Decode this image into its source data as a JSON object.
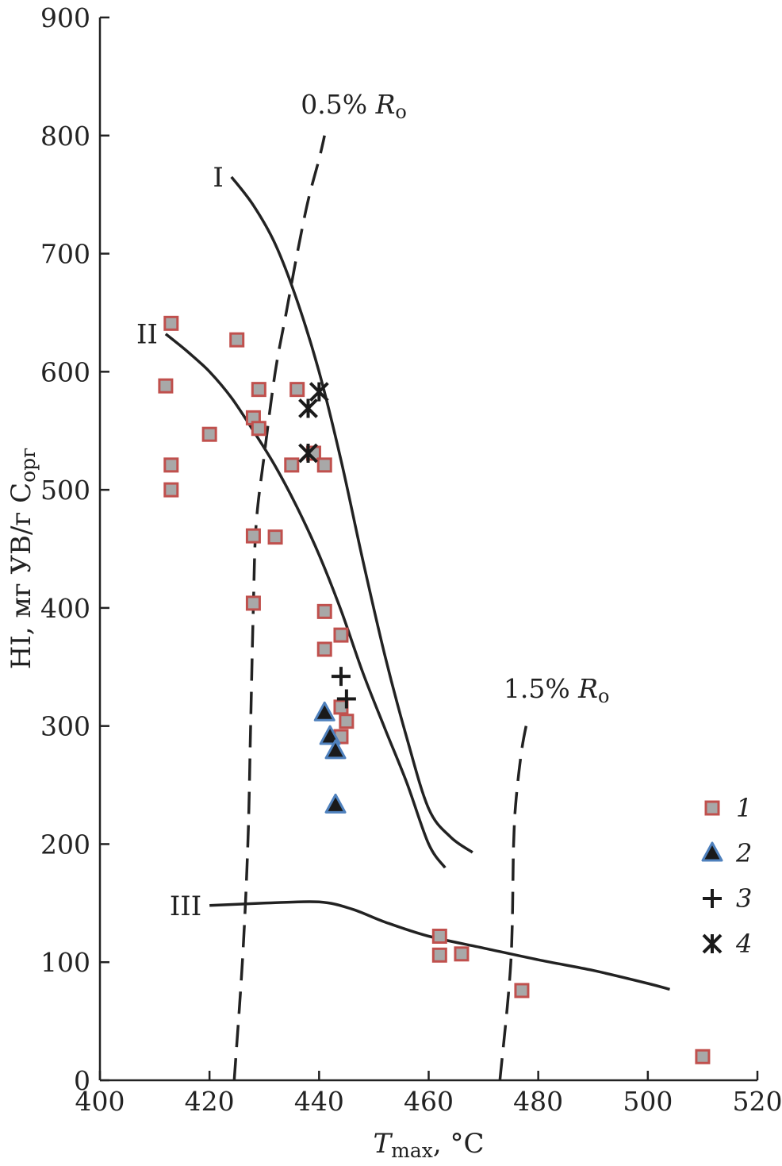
{
  "chart_data": {
    "type": "scatter",
    "xlabel": {
      "main": "T",
      "sub": "max",
      "rest": ", °C"
    },
    "ylabel": {
      "main": "HI, мг УВ/г С",
      "sub": "орг"
    },
    "xlim": [
      400,
      520
    ],
    "ylim": [
      0,
      900
    ],
    "xticks": [
      "400",
      "420",
      "440",
      "460",
      "480",
      "500",
      "520"
    ],
    "yticks": [
      "0",
      "100",
      "200",
      "300",
      "400",
      "500",
      "600",
      "700",
      "800",
      "900"
    ],
    "xtick_values": [
      400,
      420,
      440,
      460,
      480,
      500,
      520
    ],
    "ytick_values": [
      0,
      100,
      200,
      300,
      400,
      500,
      600,
      700,
      800,
      900
    ],
    "grid": false,
    "legend_position": "right",
    "colors": {
      "square_fill": "#a8a8a8",
      "square_edge": "#c0504d",
      "triangle_fill": "#1a1a1a",
      "triangle_edge": "#4f81bd",
      "marker_dark": "#1a1a1a"
    },
    "series": [
      {
        "name": "1",
        "marker": "square",
        "points": [
          [
            413,
            641
          ],
          [
            425,
            627
          ],
          [
            412,
            588
          ],
          [
            413,
            521
          ],
          [
            413,
            500
          ],
          [
            420,
            547
          ],
          [
            428,
            561
          ],
          [
            429,
            585
          ],
          [
            429,
            552
          ],
          [
            436,
            585
          ],
          [
            435,
            521
          ],
          [
            439,
            531
          ],
          [
            441,
            521
          ],
          [
            428,
            461
          ],
          [
            432,
            460
          ],
          [
            428,
            404
          ],
          [
            441,
            397
          ],
          [
            444,
            377
          ],
          [
            441,
            365
          ],
          [
            444,
            316
          ],
          [
            445,
            304
          ],
          [
            444,
            291
          ],
          [
            462,
            122
          ],
          [
            462,
            106
          ],
          [
            466,
            107
          ],
          [
            477,
            76
          ],
          [
            510,
            20
          ]
        ]
      },
      {
        "name": "2",
        "marker": "triangle",
        "points": [
          [
            441,
            311
          ],
          [
            442,
            291
          ],
          [
            443,
            279
          ],
          [
            443,
            233
          ]
        ]
      },
      {
        "name": "3",
        "marker": "plus",
        "points": [
          [
            444,
            342
          ],
          [
            445,
            323
          ]
        ]
      },
      {
        "name": "4",
        "marker": "x",
        "points": [
          [
            440,
            583
          ],
          [
            438,
            569
          ],
          [
            438,
            531
          ]
        ]
      }
    ],
    "type_curves": [
      {
        "label": "I",
        "points": [
          [
            424,
            765
          ],
          [
            428,
            741
          ],
          [
            432,
            708
          ],
          [
            436,
            660
          ],
          [
            440,
            600
          ],
          [
            444,
            525
          ],
          [
            448,
            440
          ],
          [
            452,
            360
          ],
          [
            456,
            290
          ],
          [
            460,
            230
          ],
          [
            464,
            206
          ],
          [
            468,
            193
          ]
        ]
      },
      {
        "label": "II",
        "points": [
          [
            412,
            632
          ],
          [
            416,
            617
          ],
          [
            420,
            600
          ],
          [
            424,
            578
          ],
          [
            428,
            550
          ],
          [
            432,
            520
          ],
          [
            436,
            485
          ],
          [
            440,
            445
          ],
          [
            444,
            398
          ],
          [
            448,
            345
          ],
          [
            452,
            298
          ],
          [
            456,
            252
          ],
          [
            460,
            200
          ],
          [
            463,
            180
          ]
        ]
      },
      {
        "label": "III",
        "points": [
          [
            420,
            148
          ],
          [
            430,
            150
          ],
          [
            440,
            151
          ],
          [
            446,
            145
          ],
          [
            452,
            134
          ],
          [
            460,
            122
          ],
          [
            470,
            112
          ],
          [
            480,
            102
          ],
          [
            490,
            93
          ],
          [
            500,
            82
          ],
          [
            504,
            77
          ]
        ]
      }
    ],
    "iso_curves": [
      {
        "label_pct": "0.5%",
        "label_var": "R",
        "label_sub": "o",
        "points": [
          [
            424.5,
            0
          ],
          [
            426,
            100
          ],
          [
            427,
            200
          ],
          [
            427.5,
            300
          ],
          [
            428,
            400
          ],
          [
            428.5,
            470
          ],
          [
            430,
            530
          ],
          [
            432,
            600
          ],
          [
            434,
            650
          ],
          [
            436,
            700
          ],
          [
            438,
            745
          ],
          [
            440,
            780
          ],
          [
            441,
            800
          ]
        ]
      },
      {
        "label_pct": "1.5%",
        "label_var": "R",
        "label_sub": "o",
        "points": [
          [
            473,
            0
          ],
          [
            475,
            100
          ],
          [
            475.5,
            200
          ],
          [
            476,
            240
          ],
          [
            477,
            280
          ],
          [
            478,
            305
          ]
        ]
      }
    ]
  }
}
